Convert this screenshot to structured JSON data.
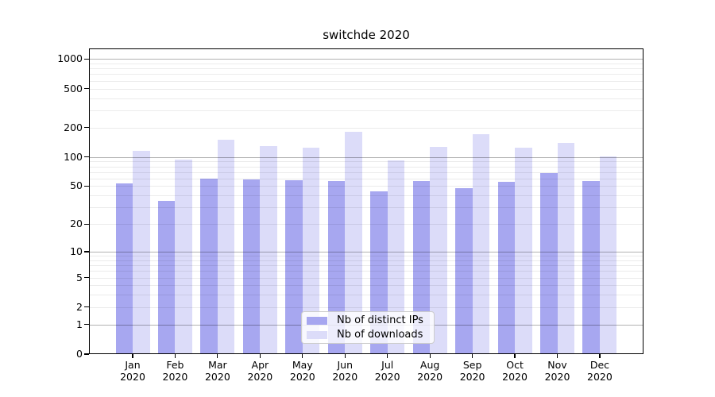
{
  "chart_data": {
    "type": "bar",
    "title": "switchde 2020",
    "categories": [
      "Jan",
      "Feb",
      "Mar",
      "Apr",
      "May",
      "Jun",
      "Jul",
      "Aug",
      "Sep",
      "Oct",
      "Nov",
      "Dec"
    ],
    "x_year": "2020",
    "series": [
      {
        "name": "Nb of distinct IPs",
        "color": "#a7a7f0",
        "values": [
          53,
          35,
          60,
          59,
          58,
          56,
          44,
          57,
          48,
          55,
          68,
          56
        ]
      },
      {
        "name": "Nb of downloads",
        "color": "#dcdcf9",
        "values": [
          115,
          94,
          150,
          130,
          125,
          180,
          93,
          128,
          170,
          125,
          140,
          101
        ]
      }
    ],
    "y_ticks": [
      0,
      1,
      2,
      5,
      10,
      20,
      50,
      100,
      200,
      500,
      1000
    ],
    "y_major_gridlines": [
      1,
      10,
      100,
      1000
    ],
    "y_scale": "log1p",
    "ylim": [
      0,
      1280
    ],
    "xlabel": "",
    "ylabel": "",
    "grid": true,
    "legend_position": "lower center"
  }
}
